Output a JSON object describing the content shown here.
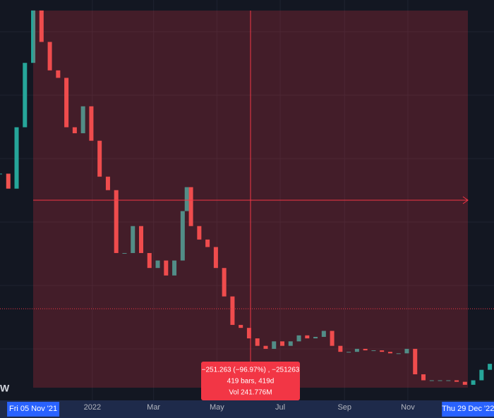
{
  "chart_data": {
    "type": "candlestick",
    "left_label": "W",
    "x": [
      -32,
      -24,
      -16,
      -8,
      0,
      8,
      16,
      24,
      32,
      40,
      48,
      56,
      64,
      72,
      80,
      88,
      96,
      104,
      112,
      120,
      128,
      136,
      144,
      148,
      152,
      160,
      168,
      176,
      184,
      192,
      200,
      208,
      216,
      224,
      232,
      240,
      248,
      256,
      264,
      272,
      280,
      288,
      296,
      304,
      312,
      320,
      328,
      336,
      344,
      352,
      360,
      368,
      376,
      384,
      392,
      400,
      408,
      416,
      424,
      432,
      440
    ],
    "close": [
      150,
      140,
      181,
      224,
      259,
      238,
      219,
      214,
      181,
      177,
      195,
      172,
      148,
      139,
      97,
      97,
      115,
      97,
      87,
      92,
      82,
      92,
      125,
      141,
      115,
      106,
      101,
      87,
      68,
      49,
      47,
      40,
      35,
      33,
      38,
      35,
      38,
      42,
      40,
      41,
      45,
      35,
      31,
      31,
      33,
      32,
      32,
      31,
      30,
      30,
      33,
      16,
      12,
      12,
      12,
      12,
      11,
      9,
      12,
      19,
      23
    ],
    "xlim": [
      -32,
      444
    ],
    "ylim": [
      0,
      266
    ],
    "xticks": [
      {
        "value": 57,
        "label": "2022"
      },
      {
        "value": 116,
        "label": "Mar"
      },
      {
        "value": 177,
        "label": "May"
      },
      {
        "value": 238,
        "label": "Jul"
      },
      {
        "value": 300,
        "label": "Sep"
      },
      {
        "value": 361,
        "label": "Nov"
      }
    ],
    "range_start": {
      "value": 0,
      "label": "Fri 05 Nov '21"
    },
    "range_end": {
      "value": 419,
      "label": "Thu 29 Dec '22"
    },
    "measure": {
      "change": "−251.263 (−96.97%) , −251263",
      "span": "419 bars, 419d",
      "volume": "Vol 241.776M"
    },
    "up_color": "#26a69a",
    "down_color": "#ef5350"
  }
}
